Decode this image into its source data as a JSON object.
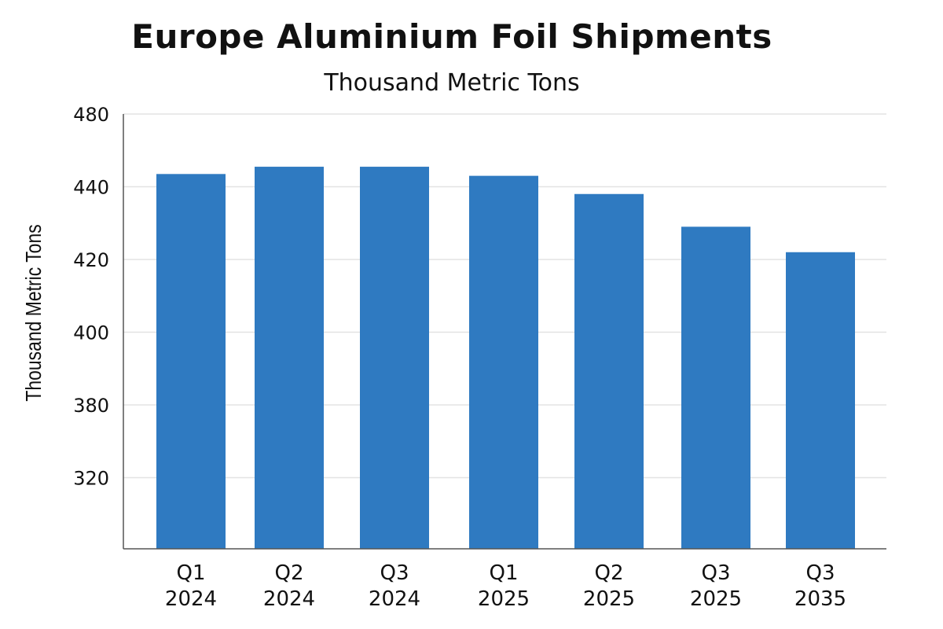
{
  "chart_data": {
    "type": "bar",
    "title": "Europe Aluminium Foil Shipments",
    "subtitle": "Thousand Metric Tons",
    "xlabel": "",
    "ylabel": "Thousand Metric Tons",
    "categories": [
      [
        "Q1",
        "2024"
      ],
      [
        "Q2",
        "2024"
      ],
      [
        "Q3",
        "2024"
      ],
      [
        "Q1",
        "2025"
      ],
      [
        "Q2",
        "2025"
      ],
      [
        "Q3",
        "2025"
      ],
      [
        "Q3",
        "2035"
      ]
    ],
    "values": [
      447,
      451,
      451,
      446,
      438,
      429,
      422
    ],
    "y_ticks": [
      "480",
      "440",
      "420",
      "400",
      "380",
      "320"
    ],
    "grid": true,
    "legend": "none",
    "bar_color": "#2f7ac1",
    "grid_color": "#e3e3e3",
    "axis_color": "#555555"
  }
}
